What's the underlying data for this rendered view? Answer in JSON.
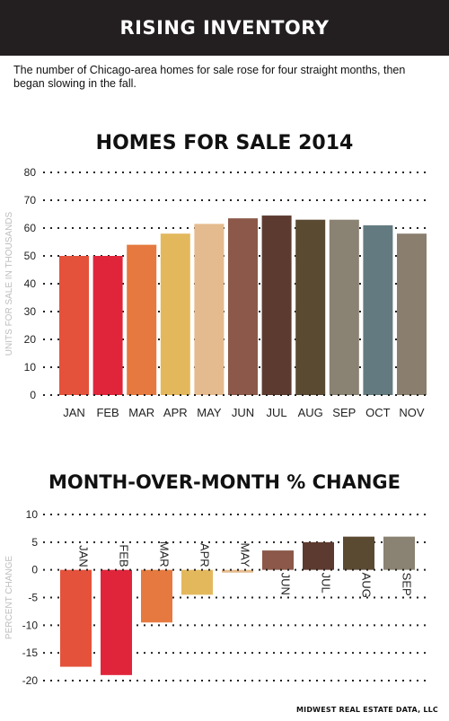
{
  "header": {
    "title": "RISING INVENTORY"
  },
  "intro": "The number of Chicago-area homes for sale rose for four straight months, then began slowing in the fall.",
  "source": "MIDWEST REAL ESTATE DATA, LLC",
  "chart_data": [
    {
      "type": "bar",
      "title": "HOMES FOR SALE 2014",
      "ylabel": "UNITS FOR SALE IN THOUSANDS",
      "xlabel": "",
      "categories": [
        "JAN",
        "FEB",
        "MAR",
        "APR",
        "MAY",
        "JUN",
        "JUL",
        "AUG",
        "SEP",
        "OCT",
        "NOV"
      ],
      "values": [
        50,
        50,
        54,
        58,
        61.5,
        63.5,
        64.5,
        63,
        63,
        61,
        58
      ],
      "colors": [
        "#e4523b",
        "#e0253b",
        "#e5793f",
        "#e3b85d",
        "#e4bb8e",
        "#8b5849",
        "#5d3a2f",
        "#5b4a32",
        "#8a8272",
        "#637b80",
        "#8a7f6e"
      ],
      "ylim": [
        0,
        80
      ],
      "yticks": [
        0,
        10,
        20,
        30,
        40,
        50,
        60,
        70,
        80
      ],
      "grid": "dotted horizontal"
    },
    {
      "type": "bar",
      "title": "MONTH-OVER-MONTH % CHANGE",
      "ylabel": "PERCENT CHANGE",
      "xlabel": "",
      "categories": [
        "JAN",
        "FEB",
        "MAR",
        "APR",
        "MAY",
        "JUN",
        "JUL",
        "AUG",
        "SEP"
      ],
      "values": [
        -17.5,
        -19,
        -9.5,
        -4.5,
        -0.5,
        3.5,
        5,
        6,
        6
      ],
      "colors": [
        "#e4523b",
        "#e0253b",
        "#e5793f",
        "#e3b85d",
        "#e4bb8e",
        "#8b5849",
        "#5d3a2f",
        "#5b4a32",
        "#8a8272"
      ],
      "ylim": [
        -20,
        10
      ],
      "yticks": [
        -20,
        -15,
        -10,
        -5,
        0,
        5,
        10
      ],
      "grid": "dotted horizontal",
      "label_orientation": "vertical"
    }
  ]
}
